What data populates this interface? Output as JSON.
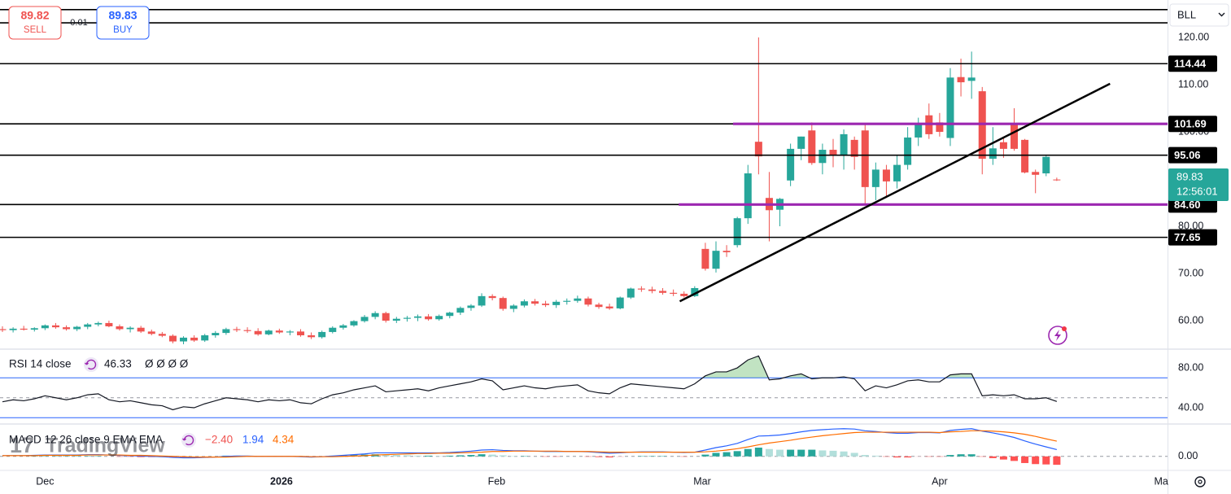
{
  "trade_panel": {
    "sell_price": 89.82,
    "sell_label": "SELL",
    "spread": 0.01,
    "buy_price": 89.83,
    "buy_label": "BUY"
  },
  "symbol": "BLL",
  "logo": "TradingView",
  "chart_data": [
    {
      "type": "candlestick",
      "up_color": "#26a69a",
      "down_color": "#ef5350",
      "xlim": [
        -0.23,
        109.4
      ],
      "ylim": [
        54.14,
        127.93
      ],
      "xticks": [
        {
          "value": 4.0,
          "label": "Dec"
        },
        {
          "value": 26.2,
          "label": "2026"
        },
        {
          "value": 46.4,
          "label": "Feb"
        },
        {
          "value": 65.7,
          "label": "Mar"
        },
        {
          "value": 88.0,
          "label": "Apr"
        },
        {
          "value": 108.8,
          "label": "Ma"
        }
      ],
      "yticks": [
        {
          "value": 60,
          "label": "60.00"
        },
        {
          "value": 70,
          "label": "70.00"
        },
        {
          "value": 80,
          "label": "80.00"
        },
        {
          "value": 100,
          "label": "100.00"
        },
        {
          "value": 110,
          "label": "110.00"
        },
        {
          "value": 120,
          "label": "120.00"
        }
      ],
      "open": [
        58.2,
        58.0,
        58.3,
        58.1,
        58.4,
        59.0,
        58.6,
        58.2,
        58.7,
        59.2,
        59.5,
        58.8,
        58.2,
        58.5,
        57.7,
        57.2,
        56.8,
        55.6,
        56.4,
        55.8,
        56.9,
        57.4,
        58.2,
        58.0,
        57.8,
        57.1,
        57.9,
        57.5,
        57.7,
        56.9,
        56.5,
        57.6,
        58.5,
        59.0,
        59.9,
        60.8,
        61.6,
        60.0,
        60.4,
        60.6,
        60.9,
        60.3,
        61.0,
        61.7,
        62.7,
        63.2,
        65.2,
        64.8,
        62.5,
        63.2,
        64.1,
        63.6,
        63.3,
        64.0,
        64.2,
        64.7,
        63.4,
        63.0,
        62.6,
        64.9,
        66.8,
        66.6,
        66.3,
        65.9,
        65.7,
        65.2,
        75.2,
        71.0,
        74.8,
        76.0,
        81.7,
        97.9,
        86.0,
        83.5,
        89.7,
        96.4,
        100.3,
        93.4,
        96.2,
        95.0,
        98.3,
        100.3,
        88.3,
        92.0,
        89.5,
        93.0,
        98.8,
        103.5,
        102.0,
        98.7,
        111.6,
        110.8,
        108.6,
        94.3,
        97.8,
        101.7,
        98.3,
        91.5,
        91.2,
        89.9
      ],
      "high": [
        58.8,
        58.6,
        58.9,
        58.6,
        59.2,
        59.5,
        59.0,
        58.9,
        59.5,
        59.8,
        60.0,
        59.2,
        58.8,
        58.9,
        58.1,
        57.6,
        57.1,
        56.7,
        56.9,
        57.2,
        57.8,
        58.5,
        58.7,
        58.6,
        58.4,
        58.1,
        58.3,
        58.0,
        58.2,
        57.5,
        57.9,
        58.8,
        59.3,
        60.1,
        61.2,
        62.0,
        61.9,
        60.8,
        61.0,
        61.3,
        61.4,
        61.3,
        61.9,
        63.0,
        63.5,
        65.8,
        65.6,
        65.1,
        63.5,
        64.5,
        64.6,
        64.2,
        64.4,
        64.7,
        65.3,
        65.1,
        63.8,
        63.6,
        65.1,
        67.0,
        67.3,
        67.2,
        66.9,
        66.6,
        66.2,
        67.3,
        76.5,
        76.8,
        76.0,
        82.0,
        93.0,
        120.0,
        91.5,
        86.0,
        97.5,
        99.0,
        102.0,
        97.5,
        98.5,
        100.5,
        99.0,
        101.5,
        93.5,
        93.0,
        95.0,
        101.0,
        103.0,
        106.0,
        104.0,
        113.5,
        115.5,
        117.0,
        109.5,
        101.0,
        99.0,
        105.0,
        98.5,
        92.0,
        95.0,
        90.3
      ],
      "low": [
        57.6,
        57.5,
        57.9,
        57.7,
        58.0,
        58.3,
        57.9,
        57.8,
        58.2,
        58.8,
        58.6,
        57.9,
        57.5,
        57.4,
        56.9,
        56.5,
        55.2,
        55.0,
        55.5,
        55.5,
        56.4,
        57.0,
        57.6,
        57.4,
        56.8,
        56.9,
        57.2,
        56.9,
        56.6,
        56.1,
        56.2,
        57.3,
        58.1,
        58.7,
        59.6,
        60.3,
        59.6,
        59.5,
        59.8,
        59.9,
        60.0,
        60.0,
        60.5,
        61.2,
        62.1,
        62.9,
        64.3,
        62.1,
        61.8,
        62.8,
        63.2,
        62.9,
        62.7,
        63.4,
        63.8,
        63.0,
        62.5,
        62.3,
        62.4,
        64.6,
        66.1,
        65.8,
        65.5,
        65.2,
        64.9,
        65.0,
        70.6,
        70.2,
        73.5,
        75.5,
        80.5,
        91.0,
        76.8,
        80.0,
        88.5,
        94.0,
        93.0,
        91.0,
        92.5,
        92.0,
        92.0,
        84.8,
        85.5,
        86.0,
        88.0,
        92.0,
        97.0,
        98.5,
        99.0,
        97.0,
        107.5,
        107.0,
        91.0,
        93.0,
        94.5,
        96.0,
        91.2,
        87.0,
        90.6,
        89.6
      ],
      "close": [
        58.0,
        58.3,
        58.1,
        58.4,
        59.0,
        58.6,
        58.2,
        58.7,
        59.2,
        59.5,
        58.8,
        58.2,
        58.5,
        57.7,
        57.2,
        56.8,
        55.6,
        56.4,
        55.8,
        56.9,
        57.4,
        58.2,
        58.0,
        57.8,
        57.1,
        57.9,
        57.5,
        57.7,
        56.9,
        56.5,
        57.6,
        58.5,
        59.0,
        59.9,
        60.8,
        61.6,
        60.0,
        60.4,
        60.6,
        60.9,
        60.3,
        61.0,
        61.7,
        62.7,
        63.2,
        65.2,
        64.8,
        62.5,
        63.2,
        64.1,
        63.6,
        63.3,
        64.0,
        64.2,
        64.7,
        63.4,
        62.9,
        62.6,
        64.9,
        66.8,
        66.6,
        66.3,
        65.9,
        65.7,
        65.2,
        66.9,
        71.0,
        74.8,
        74.5,
        81.7,
        91.2,
        94.8,
        83.4,
        85.8,
        96.4,
        99.0,
        93.4,
        96.2,
        95.0,
        99.5,
        94.7,
        88.3,
        92.0,
        89.5,
        93.0,
        98.8,
        101.5,
        99.5,
        100.0,
        111.5,
        110.5,
        111.5,
        94.3,
        96.5,
        96.4,
        96.4,
        91.4,
        90.9,
        94.7,
        89.83
      ],
      "countdown": "12:56:01",
      "levels": [
        125.9,
        123.1,
        {
          "value": 114.44,
          "label": "114.44"
        },
        {
          "value": 101.69,
          "label": "101.69"
        },
        {
          "value": 95.06,
          "label": "95.06"
        },
        {
          "value": 84.6,
          "label": "84.60"
        },
        {
          "value": 77.65,
          "label": "77.65"
        }
      ],
      "level_color": "#000000",
      "highlight_color": "#9c27b0",
      "highlight_lines": [
        {
          "from": 68.6,
          "value": 101.69
        },
        {
          "from": 63.5,
          "value": 84.6
        }
      ],
      "trendline": {
        "x": [
          63.6,
          104.0
        ],
        "y": [
          64.1,
          110.2
        ]
      }
    },
    {
      "type": "line",
      "title": "RSI 14 close",
      "legend_extra": "Ø Ø Ø Ø",
      "ylim": [
        24.5,
        98
      ],
      "yticks": [
        {
          "value": 80,
          "label": "80.00"
        },
        {
          "value": 40,
          "label": "40.00"
        }
      ],
      "bands": [
        70,
        30
      ],
      "band_color": "#2962ff",
      "midline": 50,
      "fill_color": "#4caf50",
      "series": [
        {
          "name": "RSI",
          "color": "#131722",
          "values": [
            46,
            48,
            47,
            49,
            52,
            50,
            48,
            50,
            53,
            54,
            48,
            46,
            47,
            45,
            43,
            42,
            38,
            41,
            40,
            44,
            47,
            50,
            49,
            48,
            46,
            48,
            47,
            48,
            45,
            44,
            49,
            53,
            55,
            58,
            60,
            62,
            56,
            57,
            58,
            59,
            57,
            60,
            62,
            64,
            66,
            69,
            67,
            58,
            60,
            62,
            60,
            59,
            61,
            62,
            63,
            57,
            55,
            54,
            60,
            64,
            63,
            62,
            61,
            60,
            59,
            64,
            72,
            76,
            76,
            80,
            88,
            92,
            68,
            69,
            72,
            74,
            69,
            70,
            70,
            71,
            69,
            57,
            62,
            60,
            63,
            67,
            68,
            66,
            66,
            73,
            74,
            74,
            52,
            53,
            52,
            53,
            49,
            49,
            50,
            46.33
          ]
        }
      ]
    },
    {
      "type": "macd",
      "title": "MACD 12 26 close 9 EMA EMA",
      "ylim": [
        -4.0,
        9.0
      ],
      "yticks": [
        {
          "value": 0,
          "label": "0.00"
        }
      ],
      "hist_colors": [
        "#26a69a",
        "#b2dfdb",
        "#ffcdd2",
        "#ff5252"
      ],
      "histogram": {
        "name": "Histogram",
        "last_label": "−2.40",
        "values": [
          0,
          0,
          0,
          0.1,
          0.1,
          0.1,
          0.1,
          0.1,
          0.1,
          0.1,
          0,
          -0.1,
          -0.1,
          -0.2,
          -0.2,
          -0.2,
          -0.3,
          -0.3,
          -0.2,
          -0.1,
          0,
          0.2,
          0.2,
          0.1,
          0,
          0,
          0,
          0,
          -0.1,
          -0.1,
          0,
          0.2,
          0.3,
          0.4,
          0.5,
          0.6,
          0.5,
          0.4,
          0.3,
          0.2,
          0.2,
          0.1,
          0.2,
          0.3,
          0.4,
          0.6,
          0.5,
          0.3,
          0.1,
          0.1,
          0,
          -0.1,
          -0.1,
          0,
          0,
          -0.1,
          -0.2,
          -0.3,
          -0.2,
          0,
          0.1,
          0.1,
          0.1,
          0,
          -0.1,
          0,
          0.5,
          1.0,
          1.2,
          1.5,
          2.1,
          2.5,
          2.1,
          1.9,
          1.9,
          1.9,
          1.9,
          1.7,
          1.6,
          1.4,
          1.0,
          0.4,
          0.2,
          -0.1,
          -0.3,
          -0.3,
          -0.1,
          -0.1,
          -0.1,
          0.4,
          0.6,
          0.6,
          -0.1,
          -0.5,
          -0.9,
          -1.3,
          -1.9,
          -2.2,
          -2.3,
          -2.4
        ]
      },
      "series": [
        {
          "name": "MACD",
          "color": "#2962ff",
          "values": [
            0.2,
            0.2,
            0.2,
            0.3,
            0.4,
            0.4,
            0.4,
            0.4,
            0.5,
            0.5,
            0.4,
            0.3,
            0.2,
            0.1,
            0,
            -0.1,
            -0.3,
            -0.4,
            -0.4,
            -0.3,
            -0.2,
            0,
            0.1,
            0.1,
            0,
            0,
            0,
            0,
            -0.1,
            -0.2,
            -0.1,
            0.1,
            0.3,
            0.5,
            0.7,
            1.0,
            1.0,
            1.0,
            1.0,
            1.0,
            1.0,
            1.0,
            1.1,
            1.3,
            1.5,
            1.8,
            1.9,
            1.7,
            1.6,
            1.6,
            1.5,
            1.4,
            1.4,
            1.4,
            1.4,
            1.3,
            1.1,
            0.9,
            1.0,
            1.2,
            1.3,
            1.3,
            1.3,
            1.2,
            1.1,
            1.2,
            1.8,
            2.5,
            3.0,
            3.7,
            4.8,
            5.8,
            5.9,
            6.1,
            6.5,
            7.0,
            7.4,
            7.6,
            7.8,
            7.9,
            7.8,
            7.3,
            7.1,
            6.8,
            6.6,
            6.6,
            6.8,
            6.8,
            6.7,
            7.4,
            7.7,
            7.9,
            7.2,
            6.7,
            6.1,
            5.4,
            4.4,
            3.5,
            2.7,
            1.94
          ]
        },
        {
          "name": "Signal",
          "color": "#ff6d00",
          "values": [
            0.2,
            0.2,
            0.2,
            0.2,
            0.3,
            0.3,
            0.3,
            0.3,
            0.4,
            0.4,
            0.4,
            0.4,
            0.3,
            0.3,
            0.2,
            0.1,
            0,
            -0.1,
            -0.2,
            -0.2,
            -0.2,
            -0.2,
            -0.1,
            0,
            0,
            0,
            0,
            0,
            0,
            -0.1,
            -0.1,
            -0.1,
            0,
            0.1,
            0.2,
            0.4,
            0.5,
            0.6,
            0.7,
            0.8,
            0.8,
            0.9,
            0.9,
            1.0,
            1.1,
            1.2,
            1.4,
            1.4,
            1.5,
            1.5,
            1.5,
            1.5,
            1.5,
            1.4,
            1.4,
            1.4,
            1.3,
            1.2,
            1.2,
            1.2,
            1.2,
            1.2,
            1.2,
            1.2,
            1.2,
            1.2,
            1.3,
            1.5,
            1.8,
            2.2,
            2.7,
            3.3,
            3.8,
            4.2,
            4.6,
            5.1,
            5.5,
            5.9,
            6.2,
            6.5,
            6.8,
            6.9,
            6.9,
            6.9,
            6.9,
            6.9,
            6.9,
            6.9,
            6.8,
            7.0,
            7.1,
            7.3,
            7.3,
            7.2,
            7.0,
            6.7,
            6.3,
            5.7,
            5.0,
            4.34
          ]
        }
      ]
    }
  ]
}
